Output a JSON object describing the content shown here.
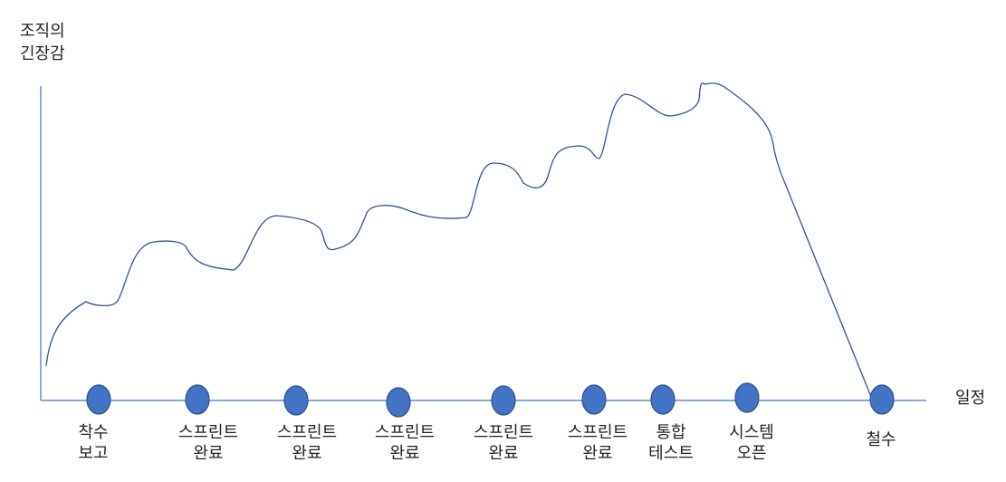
{
  "axis": {
    "y_label": [
      "조직의",
      "긴장감"
    ],
    "x_label": "일정"
  },
  "milestones": [
    {
      "label": [
        "착수",
        "보고"
      ]
    },
    {
      "label": [
        "스프린트",
        "완료"
      ]
    },
    {
      "label": [
        "스프린트",
        "완료"
      ]
    },
    {
      "label": [
        "스프린트",
        "완료"
      ]
    },
    {
      "label": [
        "스프린트",
        "완료"
      ]
    },
    {
      "label": [
        "스프린트",
        "완료"
      ]
    },
    {
      "label": [
        "통합",
        "테스트"
      ]
    },
    {
      "label": [
        "시스템",
        "오픈"
      ]
    },
    {
      "label": [
        "철수"
      ]
    }
  ]
}
